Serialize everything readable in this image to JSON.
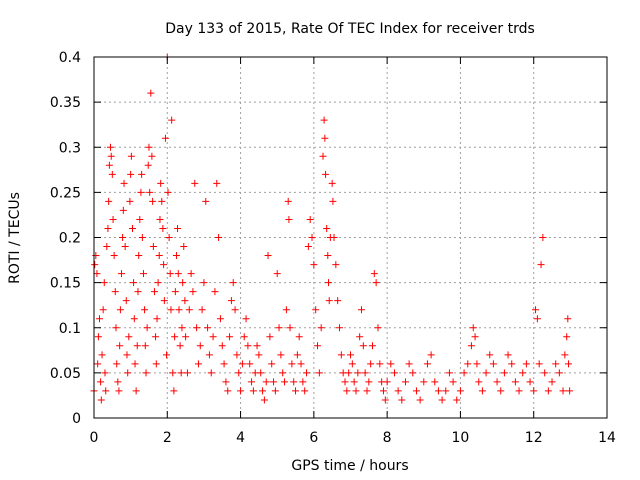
{
  "chart_data": {
    "type": "scatter",
    "title": "Day 133 of 2015, Rate Of TEC Index for receiver trds",
    "xlabel": "GPS time / hours",
    "ylabel": "ROTI / TECUs",
    "xlim": [
      0,
      14
    ],
    "ylim": [
      0,
      0.4
    ],
    "xticks": [
      0,
      2,
      4,
      6,
      8,
      10,
      12,
      14
    ],
    "yticks": [
      0,
      0.05,
      0.1,
      0.15,
      0.2,
      0.25,
      0.3,
      0.35,
      0.4
    ],
    "grid": true,
    "marker": "+",
    "series": [
      {
        "name": "trds",
        "color": "#ff0000",
        "points": [
          [
            0.0,
            0.03
          ],
          [
            0.02,
            0.17
          ],
          [
            0.05,
            0.18
          ],
          [
            0.08,
            0.16
          ],
          [
            0.1,
            0.06
          ],
          [
            0.12,
            0.09
          ],
          [
            0.15,
            0.11
          ],
          [
            0.18,
            0.04
          ],
          [
            0.2,
            0.02
          ],
          [
            0.22,
            0.07
          ],
          [
            0.25,
            0.12
          ],
          [
            0.28,
            0.15
          ],
          [
            0.3,
            0.05
          ],
          [
            0.32,
            0.03
          ],
          [
            0.35,
            0.19
          ],
          [
            0.38,
            0.21
          ],
          [
            0.4,
            0.24
          ],
          [
            0.42,
            0.28
          ],
          [
            0.45,
            0.3
          ],
          [
            0.47,
            0.29
          ],
          [
            0.5,
            0.27
          ],
          [
            0.52,
            0.22
          ],
          [
            0.55,
            0.18
          ],
          [
            0.58,
            0.14
          ],
          [
            0.6,
            0.1
          ],
          [
            0.62,
            0.06
          ],
          [
            0.65,
            0.04
          ],
          [
            0.68,
            0.03
          ],
          [
            0.7,
            0.08
          ],
          [
            0.72,
            0.12
          ],
          [
            0.75,
            0.16
          ],
          [
            0.78,
            0.2
          ],
          [
            0.8,
            0.23
          ],
          [
            0.82,
            0.26
          ],
          [
            0.85,
            0.19
          ],
          [
            0.88,
            0.13
          ],
          [
            0.9,
            0.07
          ],
          [
            0.92,
            0.05
          ],
          [
            0.95,
            0.09
          ],
          [
            0.98,
            0.24
          ],
          [
            1.0,
            0.27
          ],
          [
            1.02,
            0.29
          ],
          [
            1.05,
            0.21
          ],
          [
            1.08,
            0.15
          ],
          [
            1.1,
            0.11
          ],
          [
            1.12,
            0.06
          ],
          [
            1.15,
            0.03
          ],
          [
            1.18,
            0.08
          ],
          [
            1.2,
            0.14
          ],
          [
            1.22,
            0.18
          ],
          [
            1.25,
            0.22
          ],
          [
            1.28,
            0.25
          ],
          [
            1.3,
            0.27
          ],
          [
            1.32,
            0.2
          ],
          [
            1.35,
            0.16
          ],
          [
            1.38,
            0.12
          ],
          [
            1.4,
            0.08
          ],
          [
            1.42,
            0.05
          ],
          [
            1.45,
            0.1
          ],
          [
            1.48,
            0.28
          ],
          [
            1.5,
            0.3
          ],
          [
            1.52,
            0.25
          ],
          [
            1.55,
            0.36
          ],
          [
            1.58,
            0.29
          ],
          [
            1.6,
            0.24
          ],
          [
            1.62,
            0.19
          ],
          [
            1.65,
            0.14
          ],
          [
            1.68,
            0.09
          ],
          [
            1.7,
            0.06
          ],
          [
            1.72,
            0.11
          ],
          [
            1.75,
            0.15
          ],
          [
            1.78,
            0.18
          ],
          [
            1.8,
            0.22
          ],
          [
            1.82,
            0.26
          ],
          [
            1.85,
            0.24
          ],
          [
            1.88,
            0.21
          ],
          [
            1.9,
            0.17
          ],
          [
            1.92,
            0.13
          ],
          [
            1.95,
            0.31
          ],
          [
            1.98,
            0.07
          ],
          [
            2.0,
            0.4
          ],
          [
            2.02,
            0.25
          ],
          [
            2.05,
            0.2
          ],
          [
            2.08,
            0.16
          ],
          [
            2.1,
            0.12
          ],
          [
            2.12,
            0.33
          ],
          [
            2.15,
            0.05
          ],
          [
            2.18,
            0.03
          ],
          [
            2.2,
            0.09
          ],
          [
            2.22,
            0.14
          ],
          [
            2.25,
            0.18
          ],
          [
            2.28,
            0.21
          ],
          [
            2.3,
            0.16
          ],
          [
            2.32,
            0.12
          ],
          [
            2.35,
            0.08
          ],
          [
            2.38,
            0.05
          ],
          [
            2.4,
            0.1
          ],
          [
            2.42,
            0.15
          ],
          [
            2.45,
            0.19
          ],
          [
            2.48,
            0.13
          ],
          [
            2.5,
            0.09
          ],
          [
            2.55,
            0.05
          ],
          [
            2.6,
            0.12
          ],
          [
            2.65,
            0.16
          ],
          [
            2.7,
            0.14
          ],
          [
            2.75,
            0.26
          ],
          [
            2.8,
            0.1
          ],
          [
            2.85,
            0.06
          ],
          [
            2.9,
            0.08
          ],
          [
            2.95,
            0.12
          ],
          [
            3.0,
            0.15
          ],
          [
            3.05,
            0.24
          ],
          [
            3.1,
            0.1
          ],
          [
            3.15,
            0.07
          ],
          [
            3.2,
            0.05
          ],
          [
            3.25,
            0.09
          ],
          [
            3.3,
            0.14
          ],
          [
            3.35,
            0.26
          ],
          [
            3.4,
            0.2
          ],
          [
            3.45,
            0.11
          ],
          [
            3.5,
            0.08
          ],
          [
            3.55,
            0.06
          ],
          [
            3.6,
            0.04
          ],
          [
            3.65,
            0.03
          ],
          [
            3.7,
            0.09
          ],
          [
            3.75,
            0.13
          ],
          [
            3.8,
            0.15
          ],
          [
            3.85,
            0.12
          ],
          [
            3.9,
            0.07
          ],
          [
            3.95,
            0.05
          ],
          [
            4.0,
            0.03
          ],
          [
            4.05,
            0.06
          ],
          [
            4.1,
            0.09
          ],
          [
            4.15,
            0.11
          ],
          [
            4.2,
            0.08
          ],
          [
            4.25,
            0.06
          ],
          [
            4.3,
            0.04
          ],
          [
            4.35,
            0.03
          ],
          [
            4.4,
            0.05
          ],
          [
            4.45,
            0.08
          ],
          [
            4.5,
            0.07
          ],
          [
            4.55,
            0.05
          ],
          [
            4.6,
            0.03
          ],
          [
            4.65,
            0.02
          ],
          [
            4.7,
            0.04
          ],
          [
            4.75,
            0.18
          ],
          [
            4.8,
            0.09
          ],
          [
            4.85,
            0.06
          ],
          [
            4.9,
            0.04
          ],
          [
            4.95,
            0.03
          ],
          [
            5.0,
            0.16
          ],
          [
            5.05,
            0.1
          ],
          [
            5.1,
            0.07
          ],
          [
            5.15,
            0.05
          ],
          [
            5.2,
            0.04
          ],
          [
            5.25,
            0.12
          ],
          [
            5.3,
            0.24
          ],
          [
            5.32,
            0.22
          ],
          [
            5.35,
            0.1
          ],
          [
            5.4,
            0.06
          ],
          [
            5.45,
            0.04
          ],
          [
            5.5,
            0.03
          ],
          [
            5.55,
            0.07
          ],
          [
            5.6,
            0.09
          ],
          [
            5.65,
            0.06
          ],
          [
            5.7,
            0.04
          ],
          [
            5.75,
            0.03
          ],
          [
            5.8,
            0.05
          ],
          [
            5.85,
            0.19
          ],
          [
            5.9,
            0.22
          ],
          [
            5.95,
            0.2
          ],
          [
            6.0,
            0.17
          ],
          [
            6.05,
            0.12
          ],
          [
            6.1,
            0.08
          ],
          [
            6.15,
            0.05
          ],
          [
            6.2,
            0.1
          ],
          [
            6.25,
            0.29
          ],
          [
            6.28,
            0.33
          ],
          [
            6.3,
            0.31
          ],
          [
            6.32,
            0.27
          ],
          [
            6.35,
            0.21
          ],
          [
            6.38,
            0.18
          ],
          [
            6.4,
            0.15
          ],
          [
            6.42,
            0.13
          ],
          [
            6.45,
            0.2
          ],
          [
            6.5,
            0.26
          ],
          [
            6.52,
            0.24
          ],
          [
            6.55,
            0.2
          ],
          [
            6.6,
            0.17
          ],
          [
            6.65,
            0.13
          ],
          [
            6.7,
            0.1
          ],
          [
            6.75,
            0.07
          ],
          [
            6.8,
            0.05
          ],
          [
            6.85,
            0.04
          ],
          [
            6.9,
            0.03
          ],
          [
            6.95,
            0.05
          ],
          [
            7.0,
            0.07
          ],
          [
            7.05,
            0.06
          ],
          [
            7.1,
            0.04
          ],
          [
            7.15,
            0.03
          ],
          [
            7.2,
            0.05
          ],
          [
            7.25,
            0.09
          ],
          [
            7.3,
            0.12
          ],
          [
            7.35,
            0.08
          ],
          [
            7.4,
            0.05
          ],
          [
            7.45,
            0.03
          ],
          [
            7.5,
            0.04
          ],
          [
            7.55,
            0.06
          ],
          [
            7.6,
            0.08
          ],
          [
            7.65,
            0.16
          ],
          [
            7.7,
            0.15
          ],
          [
            7.75,
            0.1
          ],
          [
            7.8,
            0.06
          ],
          [
            7.85,
            0.04
          ],
          [
            7.9,
            0.03
          ],
          [
            7.95,
            0.02
          ],
          [
            8.0,
            0.04
          ],
          [
            8.1,
            0.06
          ],
          [
            8.2,
            0.05
          ],
          [
            8.3,
            0.03
          ],
          [
            8.4,
            0.02
          ],
          [
            8.5,
            0.04
          ],
          [
            8.6,
            0.06
          ],
          [
            8.7,
            0.05
          ],
          [
            8.8,
            0.03
          ],
          [
            8.9,
            0.02
          ],
          [
            9.0,
            0.04
          ],
          [
            9.1,
            0.06
          ],
          [
            9.2,
            0.07
          ],
          [
            9.3,
            0.04
          ],
          [
            9.4,
            0.03
          ],
          [
            9.5,
            0.02
          ],
          [
            9.6,
            0.03
          ],
          [
            9.7,
            0.05
          ],
          [
            9.8,
            0.04
          ],
          [
            9.9,
            0.02
          ],
          [
            10.0,
            0.03
          ],
          [
            10.1,
            0.05
          ],
          [
            10.2,
            0.06
          ],
          [
            10.3,
            0.08
          ],
          [
            10.35,
            0.1
          ],
          [
            10.4,
            0.09
          ],
          [
            10.45,
            0.06
          ],
          [
            10.5,
            0.04
          ],
          [
            10.6,
            0.03
          ],
          [
            10.7,
            0.05
          ],
          [
            10.8,
            0.07
          ],
          [
            10.9,
            0.06
          ],
          [
            11.0,
            0.04
          ],
          [
            11.1,
            0.03
          ],
          [
            11.2,
            0.05
          ],
          [
            11.3,
            0.07
          ],
          [
            11.4,
            0.06
          ],
          [
            11.5,
            0.04
          ],
          [
            11.6,
            0.03
          ],
          [
            11.7,
            0.05
          ],
          [
            11.8,
            0.06
          ],
          [
            11.9,
            0.04
          ],
          [
            12.0,
            0.03
          ],
          [
            12.05,
            0.12
          ],
          [
            12.1,
            0.11
          ],
          [
            12.15,
            0.06
          ],
          [
            12.2,
            0.17
          ],
          [
            12.25,
            0.2
          ],
          [
            12.3,
            0.05
          ],
          [
            12.4,
            0.03
          ],
          [
            12.5,
            0.04
          ],
          [
            12.6,
            0.06
          ],
          [
            12.7,
            0.05
          ],
          [
            12.8,
            0.03
          ],
          [
            12.85,
            0.07
          ],
          [
            12.9,
            0.09
          ],
          [
            12.93,
            0.11
          ],
          [
            12.95,
            0.06
          ],
          [
            12.98,
            0.03
          ]
        ]
      }
    ]
  }
}
